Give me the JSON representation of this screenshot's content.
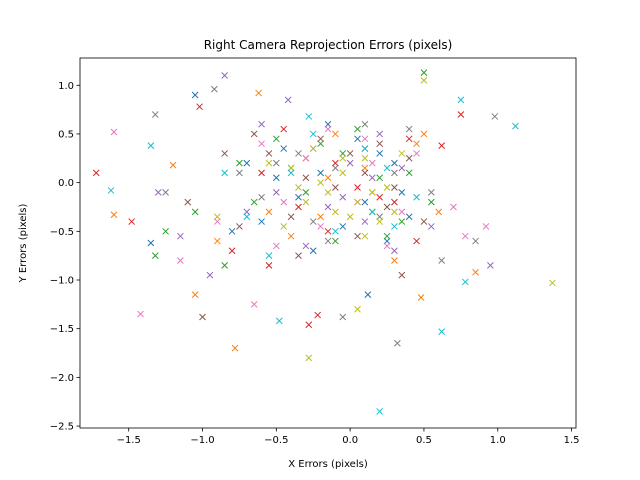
{
  "chart_data": {
    "type": "scatter",
    "title": "Right Camera Reprojection Errors (pixels)",
    "xlabel": "X Errors (pixels)",
    "ylabel": "Y Errors (pixels)",
    "xlim": [
      -1.83,
      1.53
    ],
    "ylim": [
      -2.52,
      1.28
    ],
    "xticks": [
      -1.5,
      -1.0,
      -0.5,
      0.0,
      0.5,
      1.0,
      1.5
    ],
    "yticks": [
      -2.5,
      -2.0,
      -1.5,
      -1.0,
      -0.5,
      0.0,
      0.5,
      1.0
    ],
    "xtick_labels": [
      "−1.5",
      "−1.0",
      "−0.5",
      "0.0",
      "0.5",
      "1.0",
      "1.5"
    ],
    "ytick_labels": [
      "−2.5",
      "−2.0",
      "−1.5",
      "−1.0",
      "−0.5",
      "0.0",
      "0.5",
      "1.0"
    ],
    "marker": "x",
    "grid": false,
    "legend": false,
    "colors": [
      "#1f77b4",
      "#ff7f0e",
      "#2ca02c",
      "#d62728",
      "#9467bd",
      "#8c564b",
      "#e377c2",
      "#7f7f7f",
      "#bcbd22",
      "#17becf"
    ],
    "series": [
      {
        "values": [
          [
            -0.45,
            0.35
          ],
          [
            -0.2,
            0.1
          ],
          [
            0.1,
            -0.2
          ],
          [
            -0.6,
            -0.4
          ],
          [
            0.3,
            0.2
          ],
          [
            -0.35,
            -0.15
          ],
          [
            0.05,
            0.45
          ],
          [
            -0.8,
            -0.5
          ],
          [
            0.25,
            -0.6
          ],
          [
            -0.15,
            0.6
          ],
          [
            -1.35,
            -0.62
          ],
          [
            0.12,
            -1.15
          ],
          [
            -0.5,
            0.05
          ],
          [
            0.4,
            -0.35
          ],
          [
            -0.25,
            -0.7
          ],
          [
            -1.05,
            0.9
          ],
          [
            0.2,
            0.3
          ],
          [
            -0.05,
            -0.45
          ],
          [
            -0.7,
            0.2
          ],
          [
            0.35,
            -0.1
          ]
        ]
      },
      {
        "values": [
          [
            -0.3,
            0.25
          ],
          [
            0.15,
            -0.1
          ],
          [
            -0.55,
            -0.3
          ],
          [
            0.45,
            0.4
          ],
          [
            -0.1,
            0.5
          ],
          [
            -0.9,
            -0.6
          ],
          [
            0.6,
            -0.3
          ],
          [
            -1.6,
            -0.33
          ],
          [
            -0.78,
            -1.7
          ],
          [
            -1.05,
            -1.15
          ],
          [
            0.5,
            0.5
          ],
          [
            -0.4,
            -0.55
          ],
          [
            0.1,
            0.15
          ],
          [
            -0.2,
            -0.35
          ],
          [
            0.3,
            -0.8
          ],
          [
            -1.2,
            0.18
          ],
          [
            -0.62,
            0.92
          ],
          [
            0.85,
            -0.92
          ],
          [
            -0.15,
            0.05
          ],
          [
            0.48,
            -1.18
          ]
        ]
      },
      {
        "values": [
          [
            -0.4,
            0.15
          ],
          [
            0.2,
            0.05
          ],
          [
            -0.65,
            -0.2
          ],
          [
            0.35,
            -0.4
          ],
          [
            -0.1,
            -0.6
          ],
          [
            -1.25,
            -0.5
          ],
          [
            0.05,
            0.55
          ],
          [
            -0.85,
            -0.85
          ],
          [
            0.5,
            1.13
          ],
          [
            -0.3,
            -0.1
          ],
          [
            0.15,
            -0.3
          ],
          [
            -0.5,
            0.45
          ],
          [
            0.4,
            0.1
          ],
          [
            -1.32,
            -0.75
          ],
          [
            -0.75,
            0.2
          ],
          [
            0.25,
            -0.55
          ],
          [
            -0.05,
            0.3
          ],
          [
            -1.05,
            -0.3
          ],
          [
            0.55,
            -0.2
          ],
          [
            -0.2,
            0.4
          ]
        ]
      },
      {
        "values": [
          [
            -0.35,
            -0.25
          ],
          [
            0.1,
            0.35
          ],
          [
            -0.6,
            0.1
          ],
          [
            0.3,
            -0.2
          ],
          [
            -1.72,
            0.1
          ],
          [
            -1.48,
            -0.4
          ],
          [
            0.75,
            0.7
          ],
          [
            -0.28,
            -1.46
          ],
          [
            -0.45,
            0.55
          ],
          [
            0.2,
            -0.15
          ],
          [
            -0.15,
            -0.5
          ],
          [
            0.4,
            0.45
          ],
          [
            -1.02,
            0.78
          ],
          [
            -0.8,
            -0.7
          ],
          [
            0.05,
            -0.05
          ],
          [
            0.62,
            0.38
          ],
          [
            -0.22,
            -1.36
          ],
          [
            -0.55,
            -0.85
          ],
          [
            0.45,
            -0.6
          ],
          [
            -0.1,
            0.2
          ]
        ]
      },
      {
        "values": [
          [
            -0.5,
            -0.1
          ],
          [
            0.1,
            -0.4
          ],
          [
            -0.25,
            0.35
          ],
          [
            0.35,
            0.15
          ],
          [
            -0.7,
            -0.3
          ],
          [
            -0.85,
            1.1
          ],
          [
            -0.42,
            0.85
          ],
          [
            -1.3,
            -0.1
          ],
          [
            0.2,
            0.5
          ],
          [
            -0.15,
            -0.25
          ],
          [
            -1.15,
            -0.55
          ],
          [
            0.3,
            -0.7
          ],
          [
            -0.95,
            -0.95
          ],
          [
            0.0,
            0.2
          ],
          [
            0.55,
            -0.45
          ],
          [
            -0.6,
            0.6
          ],
          [
            -0.3,
            -0.65
          ],
          [
            0.15,
            0.05
          ],
          [
            -0.05,
            -0.15
          ],
          [
            0.95,
            -0.85
          ]
        ]
      },
      {
        "values": [
          [
            -0.3,
            0.05
          ],
          [
            0.25,
            -0.25
          ],
          [
            -0.55,
            0.3
          ],
          [
            0.05,
            -0.55
          ],
          [
            -0.2,
            0.45
          ],
          [
            -1.0,
            -1.38
          ],
          [
            0.4,
            0.25
          ],
          [
            -0.75,
            -0.45
          ],
          [
            0.1,
            0.1
          ],
          [
            -0.4,
            -0.35
          ],
          [
            0.35,
            -0.95
          ],
          [
            -1.1,
            -0.2
          ],
          [
            -0.65,
            0.5
          ],
          [
            0.2,
            0.4
          ],
          [
            -0.1,
            -0.05
          ],
          [
            0.5,
            -0.4
          ],
          [
            -0.35,
            -0.75
          ],
          [
            0.0,
            0.3
          ],
          [
            -0.85,
            0.3
          ],
          [
            0.3,
            -0.05
          ]
        ]
      },
      {
        "values": [
          [
            -0.45,
            -0.2
          ],
          [
            0.15,
            0.2
          ],
          [
            -0.2,
            -0.45
          ],
          [
            0.35,
            -0.3
          ],
          [
            -0.6,
            0.4
          ],
          [
            -1.6,
            0.52
          ],
          [
            -1.42,
            -1.35
          ],
          [
            0.92,
            -0.45
          ],
          [
            -0.65,
            -1.25
          ],
          [
            -0.3,
            0.25
          ],
          [
            0.05,
            -0.2
          ],
          [
            -0.9,
            -0.4
          ],
          [
            0.45,
            0.3
          ],
          [
            -0.15,
            0.55
          ],
          [
            0.25,
            -0.65
          ],
          [
            -1.15,
            -0.8
          ],
          [
            0.7,
            -0.25
          ],
          [
            0.78,
            -0.55
          ],
          [
            -0.5,
            -0.65
          ],
          [
            0.1,
            0.45
          ]
        ]
      },
      {
        "values": [
          [
            -0.35,
            0.3
          ],
          [
            0.2,
            -0.35
          ],
          [
            -0.6,
            -0.15
          ],
          [
            0.4,
            0.55
          ],
          [
            -0.1,
            0.15
          ],
          [
            -0.92,
            0.96
          ],
          [
            -1.32,
            0.7
          ],
          [
            0.32,
            -1.65
          ],
          [
            0.98,
            0.68
          ],
          [
            0.85,
            -0.6
          ],
          [
            -0.25,
            -0.4
          ],
          [
            0.1,
            0.6
          ],
          [
            -0.75,
            0.1
          ],
          [
            -1.25,
            -0.1
          ],
          [
            0.55,
            -0.1
          ],
          [
            -0.05,
            -1.38
          ],
          [
            -0.5,
            0.2
          ],
          [
            0.3,
            0.1
          ],
          [
            -0.15,
            -0.6
          ],
          [
            0.62,
            -0.8
          ]
        ]
      },
      {
        "values": [
          [
            -0.2,
            0.0
          ],
          [
            0.05,
            -0.2
          ],
          [
            -0.4,
            0.15
          ],
          [
            0.25,
            -0.05
          ],
          [
            -0.1,
            -0.3
          ],
          [
            0.1,
            0.25
          ],
          [
            -0.3,
            -0.2
          ],
          [
            0.2,
            -0.4
          ],
          [
            -0.05,
            0.1
          ],
          [
            0.15,
            -0.1
          ],
          [
            -0.25,
            0.35
          ],
          [
            0.3,
            -0.3
          ],
          [
            -0.15,
            -0.1
          ],
          [
            0.0,
            -0.35
          ],
          [
            -0.35,
            -0.05
          ],
          [
            1.37,
            -1.03
          ],
          [
            -0.28,
            -1.8
          ],
          [
            0.05,
            -1.3
          ],
          [
            0.5,
            1.05
          ],
          [
            -0.9,
            -0.35
          ],
          [
            -0.45,
            -0.45
          ],
          [
            0.35,
            0.3
          ],
          [
            -0.05,
            0.25
          ],
          [
            0.1,
            -0.55
          ],
          [
            -0.55,
            0.2
          ]
        ]
      },
      {
        "values": [
          [
            -0.4,
            0.1
          ],
          [
            0.25,
            0.15
          ],
          [
            -0.7,
            -0.35
          ],
          [
            0.15,
            -0.3
          ],
          [
            -0.25,
            0.5
          ],
          [
            -1.62,
            -0.08
          ],
          [
            -1.35,
            0.38
          ],
          [
            -0.48,
            -1.42
          ],
          [
            0.2,
            -2.35
          ],
          [
            0.75,
            0.85
          ],
          [
            0.62,
            -1.53
          ],
          [
            1.12,
            0.58
          ],
          [
            0.78,
            -1.02
          ],
          [
            -0.28,
            0.68
          ],
          [
            0.45,
            -0.15
          ],
          [
            -0.1,
            -0.5
          ],
          [
            0.1,
            0.35
          ],
          [
            -0.55,
            -0.75
          ],
          [
            0.3,
            -0.45
          ],
          [
            -0.85,
            0.1
          ]
        ]
      }
    ]
  }
}
